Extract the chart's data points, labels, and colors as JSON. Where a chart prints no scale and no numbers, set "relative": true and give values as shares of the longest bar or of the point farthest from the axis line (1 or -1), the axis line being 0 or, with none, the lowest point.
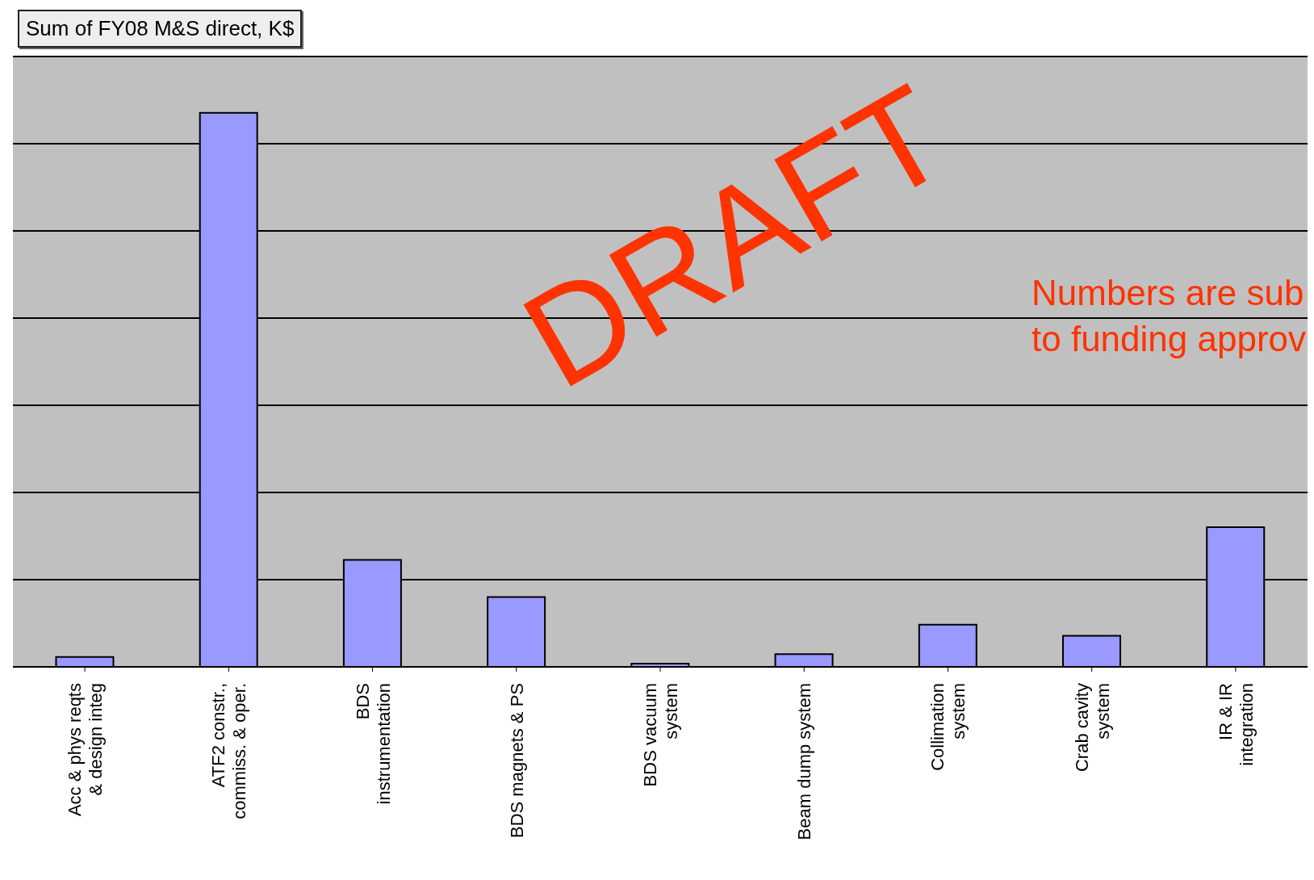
{
  "chart_data": {
    "type": "bar",
    "title": "Sum of FY08 M&S direct, K$",
    "categories": [
      "Acc & phys reqts & design integ",
      "ATF2 constr., commiss. & oper.",
      "BDS instrumentation",
      "BDS magnets & PS",
      "BDS vacuum system",
      "Beam dump system",
      "Collimation system",
      "Crab cavity system",
      "IR & IR integration"
    ],
    "values": [
      0.018,
      1,
      0.193,
      0.126,
      0.006,
      0.023,
      0.076,
      0.056,
      0.252
    ],
    "color": "#9999ff",
    "relative": true,
    "grid": "y",
    "annotations": [
      "DRAFT",
      "Numbers are sub",
      "to funding approv"
    ]
  }
}
